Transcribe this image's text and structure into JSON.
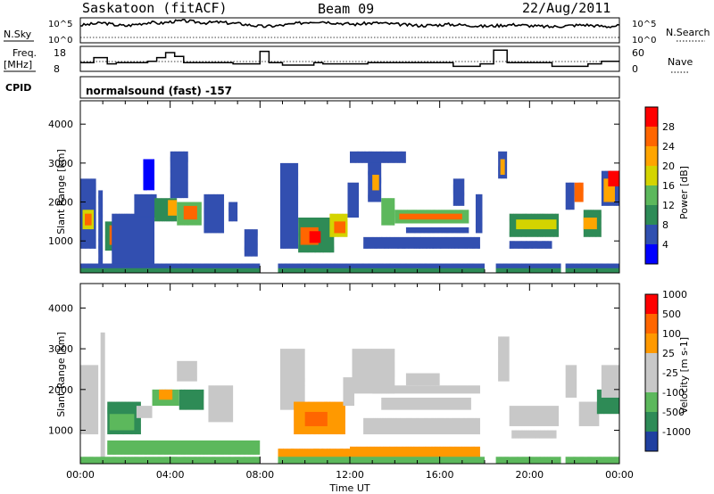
{
  "header": {
    "station": "Saskatoon (fitACF)",
    "beam": "Beam 09",
    "date": "22/Aug/2011"
  },
  "params": {
    "nsky_label": "N.Sky",
    "nsky_ticks": [
      "10^5",
      "10^0"
    ],
    "nsearch_label": "N.Search",
    "nsearch_ticks": [
      "10^5",
      "10^0"
    ],
    "freq_label": "Freq.",
    "freq_unit": "[MHz]",
    "freq_ticks": [
      "18",
      "8"
    ],
    "nave_label": "Nave",
    "nave_ticks": [
      "60",
      "0"
    ],
    "cpid_label": "CPID",
    "cpid_value": "normalsound (fast) -157"
  },
  "colors": {
    "power": [
      "#0000ff",
      "#3050b0",
      "#2e8b57",
      "#5cb85c",
      "#d4d400",
      "#ffa500",
      "#ff6600",
      "#ff0000"
    ],
    "velocity": [
      "#2040a0",
      "#2e8b57",
      "#5cb85c",
      "#c8c8c8",
      "#c8c8c8",
      "#ff9900",
      "#ff6600",
      "#ff0000"
    ]
  },
  "chart_data": [
    {
      "type": "heatmap",
      "name": "power-panel",
      "ylabel": "Slant Range [km]",
      "xlim": [
        "00:00",
        "24:00"
      ],
      "ylim": [
        180,
        4600
      ],
      "yticks": [
        "1000",
        "2000",
        "3000",
        "4000"
      ],
      "xticks": [
        "00:00",
        "04:00",
        "08:00",
        "12:00",
        "16:00",
        "20:00",
        "00:00"
      ],
      "colorbar_label": "Power [dB]",
      "colorbar_ticks": [
        "28",
        "24",
        "20",
        "16",
        "12",
        "8",
        "4"
      ],
      "colorbar_range": [
        0,
        32
      ]
    },
    {
      "type": "heatmap",
      "name": "velocity-panel",
      "ylabel": "Slant Range [km]",
      "xlabel": "Time UT",
      "xlim": [
        "00:00",
        "24:00"
      ],
      "ylim": [
        180,
        4600
      ],
      "yticks": [
        "1000",
        "2000",
        "3000",
        "4000"
      ],
      "xticks": [
        "00:00",
        "04:00",
        "08:00",
        "12:00",
        "16:00",
        "20:00",
        "00:00"
      ],
      "colorbar_label": "Velocity [m s-1]",
      "colorbar_ticks": [
        "1000",
        "500",
        "100",
        "25",
        "-25",
        "-100",
        "-500",
        "-1000"
      ]
    },
    {
      "type": "line",
      "name": "frequency-line",
      "ylabel": "Freq. [MHz]",
      "ylim": [
        8,
        18
      ],
      "x_hours": [
        0,
        0.6,
        0.6,
        1.2,
        1.2,
        1.6,
        1.6,
        3.0,
        3.0,
        3.4,
        3.4,
        3.8,
        3.8,
        4.2,
        4.2,
        4.6,
        4.6,
        6.8,
        6.8,
        8.0,
        8.0,
        8.4,
        8.4,
        9.0,
        9.0,
        10.4,
        10.4,
        10.8,
        10.8,
        12.8,
        12.8,
        16.6,
        16.6,
        17.8,
        17.8,
        18.4,
        18.4,
        19.0,
        19.0,
        21.0,
        21.0,
        22.6,
        22.6,
        23.2,
        23.2,
        24
      ],
      "values": [
        11.5,
        11.5,
        13.5,
        13.5,
        11,
        11,
        11.5,
        11.5,
        12,
        12,
        13.5,
        13.5,
        15.5,
        15.5,
        14,
        14,
        11.5,
        11.5,
        11,
        11,
        16,
        16,
        11.5,
        11.5,
        10.5,
        10.5,
        11.5,
        11.5,
        11,
        11,
        11.5,
        11.5,
        10,
        10,
        11,
        11,
        16.5,
        16.5,
        11.5,
        11.5,
        10,
        10,
        11,
        11,
        12,
        12
      ]
    },
    {
      "type": "line",
      "name": "nsky-line",
      "ylabel": "N.Sky",
      "values": [
        0.7,
        0.75,
        0.8,
        0.72,
        0.68,
        0.75,
        0.82,
        0.78,
        0.85,
        0.88,
        0.84,
        0.8,
        0.83,
        0.79,
        0.76,
        0.7,
        0.65,
        0.68,
        0.72,
        0.78,
        0.84,
        0.86,
        0.81,
        0.77,
        0.74,
        0.78,
        0.8,
        0.76,
        0.73,
        0.7,
        0.69,
        0.71,
        0.74,
        0.72,
        0.7,
        0.66,
        0.68,
        0.71,
        0.73,
        0.69,
        0.66,
        0.64,
        0.67,
        0.7,
        0.72,
        0.68,
        0.65,
        0.69
      ]
    }
  ]
}
